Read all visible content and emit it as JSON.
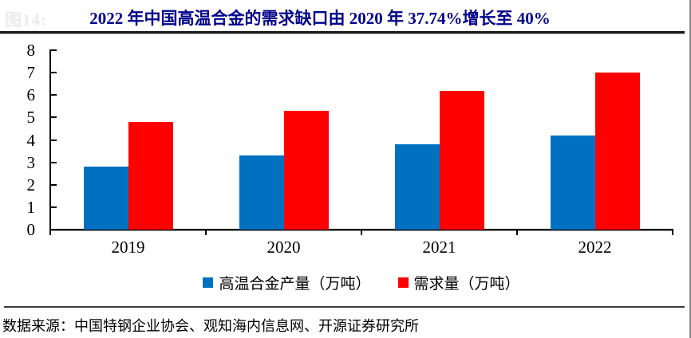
{
  "figure_label_faint": "图14:",
  "title": "2022 年中国高温合金的需求缺口由 2020 年 37.74%增长至 40%",
  "source": "数据来源：中国特钢企业协会、观知海内信息网、开源证券研究所",
  "colors": {
    "title": "#00008B",
    "production_bar": "#0070C0",
    "demand_bar": "#FF0000",
    "axis": "#000000"
  },
  "chart_data": {
    "type": "bar",
    "title": "2022 年中国高温合金的需求缺口由 2020 年 37.74%增长至 40%",
    "categories": [
      "2019",
      "2020",
      "2021",
      "2022"
    ],
    "series": [
      {
        "name": "高温合金产量（万吨）",
        "color": "#0070C0",
        "values": [
          2.8,
          3.3,
          3.8,
          4.2
        ]
      },
      {
        "name": "需求量（万吨）",
        "color": "#FF0000",
        "values": [
          4.8,
          5.3,
          6.2,
          7.0
        ]
      }
    ],
    "xlabel": "",
    "ylabel": "",
    "ylim": [
      0,
      8
    ],
    "yticks": [
      0,
      1,
      2,
      3,
      4,
      5,
      6,
      7,
      8
    ],
    "grid": false,
    "legend_position": "bottom"
  }
}
